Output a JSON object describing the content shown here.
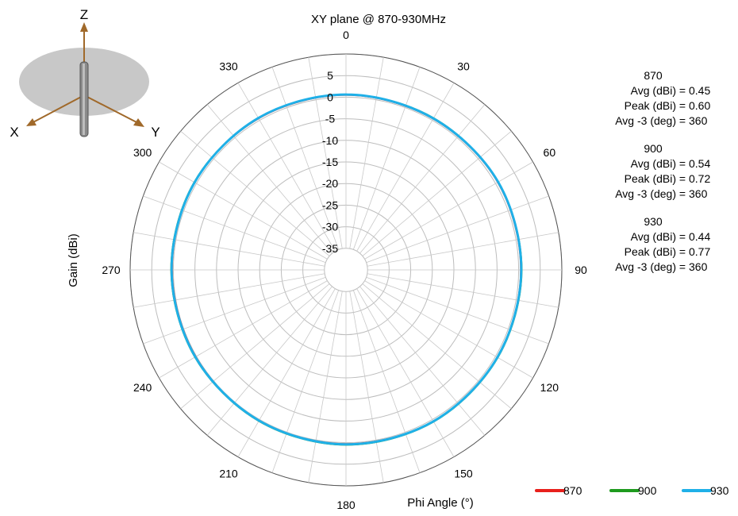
{
  "chart_data": {
    "type": "polar-line",
    "title": "XY plane @ 870-930MHz",
    "xlabel": "Phi  Angle (°)",
    "ylabel": "Gain  (dBi)",
    "angle_ticks": [
      "0",
      "30",
      "60",
      "90",
      "120",
      "150",
      "180",
      "210",
      "240",
      "270",
      "300",
      "330"
    ],
    "radial_ticks": [
      "5",
      "0",
      "-5",
      "-10",
      "-15",
      "-20",
      "-25",
      "-30",
      "-35"
    ],
    "radial_range": [
      -40,
      10
    ],
    "radial_tick_values": [
      5,
      0,
      -5,
      -10,
      -15,
      -20,
      -25,
      -30,
      -35
    ],
    "angles_deg": [
      0,
      30,
      60,
      90,
      120,
      150,
      180,
      210,
      240,
      270,
      300,
      330
    ],
    "series": [
      {
        "name": "870",
        "color": "#e8201c",
        "gain_dbi": [
          0.5,
          0.4,
          0.6,
          0.5,
          0.5,
          0.5,
          0.3,
          0.3,
          0.2,
          0.3,
          0.5,
          0.5
        ]
      },
      {
        "name": "900",
        "color": "#1e9a1e",
        "gain_dbi": [
          0.6,
          0.6,
          0.7,
          0.7,
          0.6,
          0.6,
          0.5,
          0.4,
          0.4,
          0.5,
          0.6,
          0.6
        ]
      },
      {
        "name": "930",
        "color": "#1fb0e8",
        "gain_dbi": [
          0.6,
          0.5,
          0.7,
          0.6,
          0.5,
          0.5,
          0.4,
          0.3,
          0.3,
          0.4,
          0.5,
          0.6
        ]
      }
    ],
    "grid": true,
    "legend_position": "bottom-right"
  },
  "stats": [
    {
      "title": "870",
      "rows": [
        {
          "key": "Avg (dBi)",
          "value": "0.45"
        },
        {
          "key": "Peak (dBi)",
          "value": "0.60"
        },
        {
          "key": "Avg -3 (deg)",
          "value": "360"
        }
      ]
    },
    {
      "title": "900",
      "rows": [
        {
          "key": "Avg (dBi)",
          "value": "0.54"
        },
        {
          "key": "Peak (dBi)",
          "value": "0.72"
        },
        {
          "key": "Avg -3 (deg)",
          "value": "360"
        }
      ]
    },
    {
      "title": "930",
      "rows": [
        {
          "key": "Avg (dBi)",
          "value": "0.44"
        },
        {
          "key": "Peak (dBi)",
          "value": "0.77"
        },
        {
          "key": "Avg -3 (deg)",
          "value": "360"
        }
      ]
    }
  ],
  "stat_equals": "=",
  "axes_icon": {
    "x_label": "X",
    "y_label": "Y",
    "z_label": "Z",
    "arrow_color": "#a0692a",
    "disc_color": "#c8c8c8"
  }
}
